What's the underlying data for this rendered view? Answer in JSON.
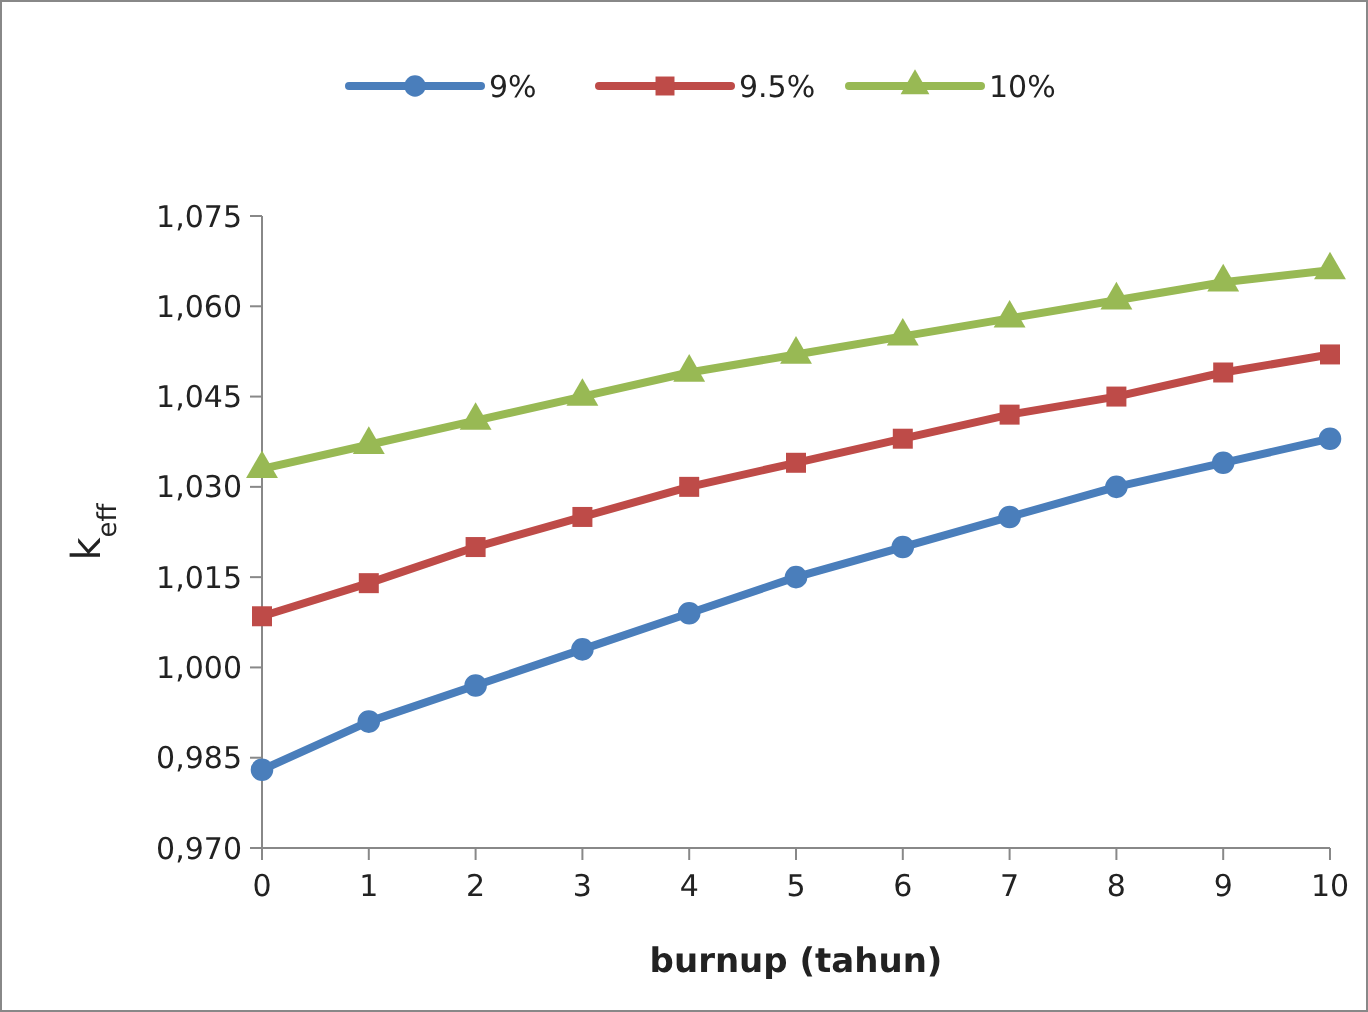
{
  "chart_data": {
    "type": "line",
    "xlabel": "burnup (tahun)",
    "ylabel": "k$_{eff}$",
    "x": [
      0,
      1,
      2,
      3,
      4,
      5,
      6,
      7,
      8,
      9,
      10
    ],
    "series": [
      {
        "name": "9%",
        "color": "#4a7ebb",
        "marker": "circle",
        "values": [
          0.983,
          0.991,
          0.997,
          1.003,
          1.009,
          1.015,
          1.02,
          1.025,
          1.03,
          1.034,
          1.038
        ]
      },
      {
        "name": "9.5%",
        "color": "#be4b48",
        "marker": "square",
        "values": [
          1.0085,
          1.014,
          1.02,
          1.025,
          1.03,
          1.034,
          1.038,
          1.042,
          1.045,
          1.049,
          1.052
        ]
      },
      {
        "name": "10%",
        "color": "#98b954",
        "marker": "triangle",
        "values": [
          1.033,
          1.037,
          1.041,
          1.045,
          1.049,
          1.052,
          1.055,
          1.058,
          1.061,
          1.064,
          1.066
        ]
      }
    ],
    "xlim": [
      0,
      10
    ],
    "xticks": [
      0,
      1,
      2,
      3,
      4,
      5,
      6,
      7,
      8,
      9,
      10
    ],
    "ylim": [
      0.97,
      1.075
    ],
    "yticks": [
      {
        "value": 0.97,
        "label": "0,970"
      },
      {
        "value": 0.985,
        "label": "0,985"
      },
      {
        "value": 1.0,
        "label": "1,000"
      },
      {
        "value": 1.015,
        "label": "1,015"
      },
      {
        "value": 1.03,
        "label": "1,030"
      },
      {
        "value": 1.045,
        "label": "1,045"
      },
      {
        "value": 1.06,
        "label": "1,060"
      },
      {
        "value": 1.075,
        "label": "1,075"
      }
    ],
    "grid": false,
    "legend": "top",
    "line_style": "solid"
  }
}
